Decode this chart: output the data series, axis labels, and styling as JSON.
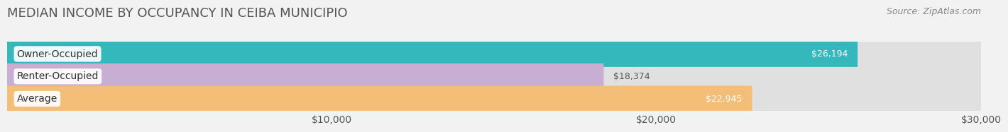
{
  "title": "MEDIAN INCOME BY OCCUPANCY IN CEIBA MUNICIPIO",
  "source": "Source: ZipAtlas.com",
  "categories": [
    "Owner-Occupied",
    "Renter-Occupied",
    "Average"
  ],
  "values": [
    26194,
    18374,
    22945
  ],
  "bar_colors": [
    "#35b8bc",
    "#c9aed3",
    "#f5be78"
  ],
  "value_labels": [
    "$26,194",
    "$18,374",
    "$22,945"
  ],
  "value_label_inside": [
    true,
    false,
    true
  ],
  "value_label_colors_inside": [
    "white",
    "#555555",
    "white"
  ],
  "xlim": [
    0,
    30000
  ],
  "xticks": [
    10000,
    20000,
    30000
  ],
  "xtick_labels": [
    "$10,000",
    "$20,000",
    "$30,000"
  ],
  "background_color": "#f2f2f2",
  "bar_bg_color": "#e0e0e0",
  "title_fontsize": 13,
  "label_fontsize": 10,
  "value_fontsize": 9,
  "source_fontsize": 9
}
